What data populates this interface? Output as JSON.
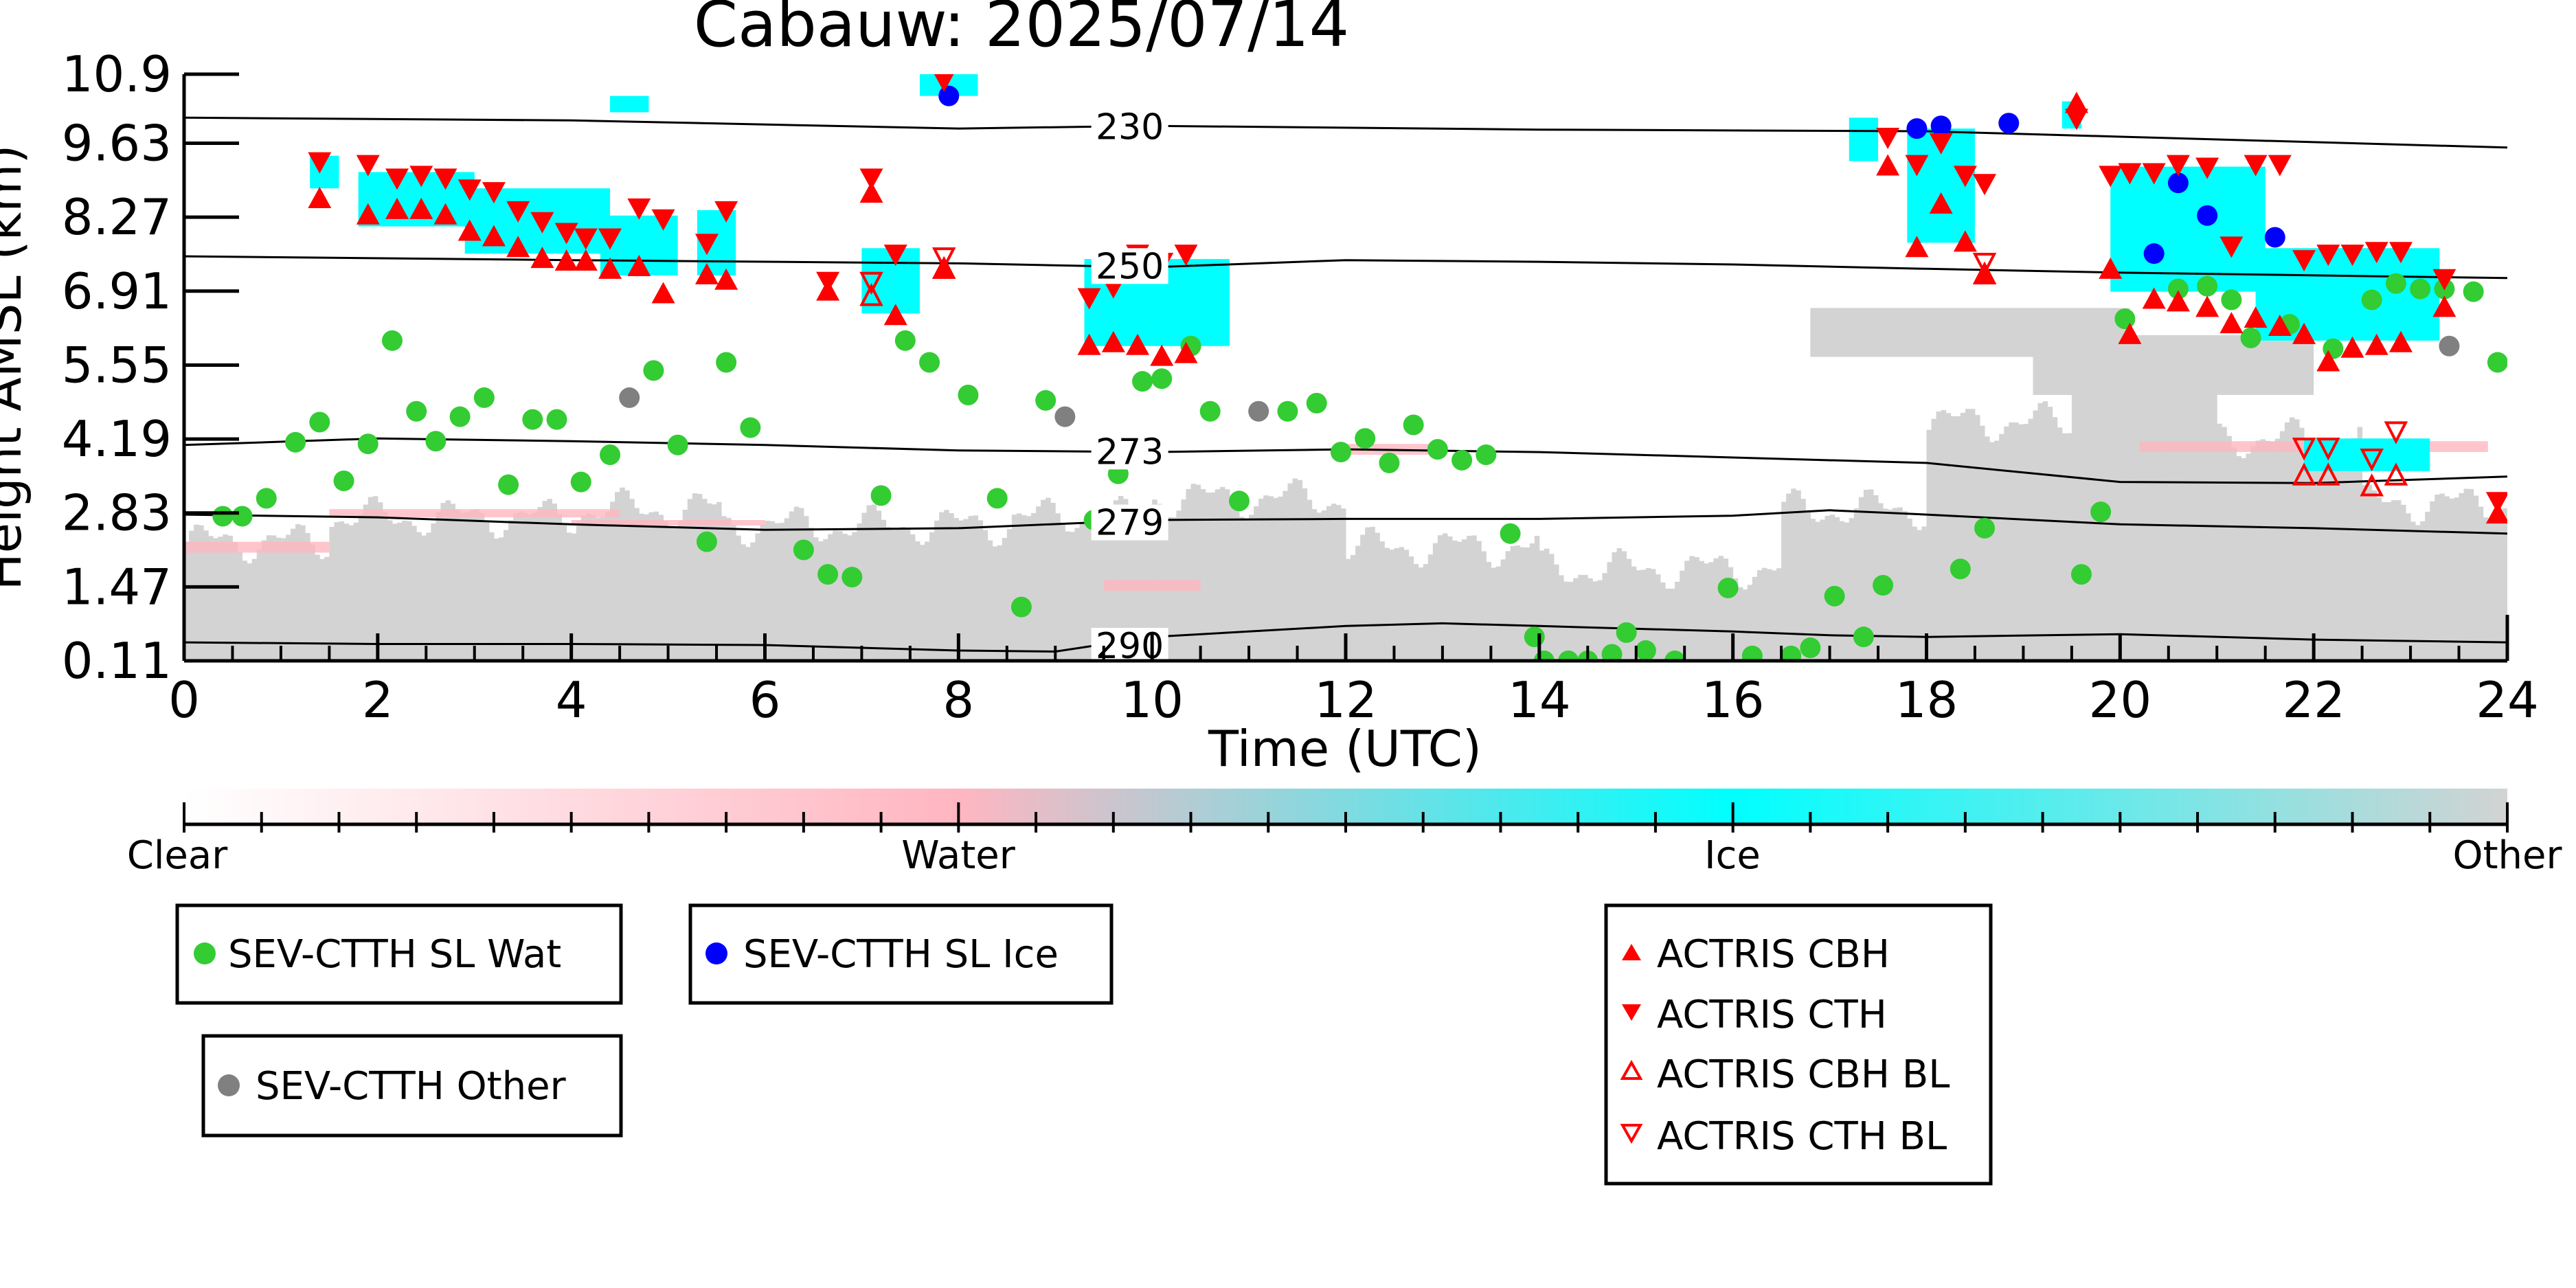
{
  "chart_data": {
    "type": "scatter",
    "title": "Cabauw: 2025/07/14",
    "xlabel": "Time (UTC)",
    "ylabel": "Height AMSL (km)",
    "xlim": [
      0,
      24
    ],
    "ylim": [
      0.11,
      10.9
    ],
    "x_ticks": [
      "0",
      "2",
      "4",
      "6",
      "8",
      "10",
      "12",
      "14",
      "16",
      "18",
      "20",
      "22",
      "24"
    ],
    "y_ticks": [
      "0.11",
      "1.47",
      "2.83",
      "4.19",
      "5.55",
      "6.91",
      "8.27",
      "9.63",
      "10.9"
    ],
    "colorbar": {
      "labels": [
        "Clear",
        "Water",
        "Ice",
        "Other"
      ],
      "colors": [
        "#ffffff",
        "#ffb6c1",
        "#00ffff",
        "#d3d3d3"
      ]
    },
    "isotherms": [
      {
        "label": "230",
        "label_x": 9.4,
        "points": [
          [
            0,
            10.1
          ],
          [
            4,
            10.05
          ],
          [
            8,
            9.9
          ],
          [
            10,
            9.95
          ],
          [
            14,
            9.88
          ],
          [
            18,
            9.85
          ],
          [
            20,
            9.75
          ],
          [
            24,
            9.55
          ]
        ]
      },
      {
        "label": "250",
        "label_x": 9.4,
        "points": [
          [
            0,
            7.55
          ],
          [
            4,
            7.48
          ],
          [
            8,
            7.42
          ],
          [
            10,
            7.35
          ],
          [
            12,
            7.48
          ],
          [
            14,
            7.45
          ],
          [
            16,
            7.4
          ],
          [
            18,
            7.32
          ],
          [
            20,
            7.25
          ],
          [
            24,
            7.15
          ]
        ]
      },
      {
        "label": "273",
        "label_x": 9.4,
        "points": [
          [
            0,
            4.08
          ],
          [
            2,
            4.2
          ],
          [
            4,
            4.15
          ],
          [
            6,
            4.08
          ],
          [
            8,
            3.98
          ],
          [
            10,
            3.95
          ],
          [
            12,
            4.0
          ],
          [
            14,
            3.95
          ],
          [
            16,
            3.85
          ],
          [
            18,
            3.75
          ],
          [
            20,
            3.4
          ],
          [
            22,
            3.38
          ],
          [
            24,
            3.5
          ]
        ]
      },
      {
        "label": "279",
        "label_x": 9.4,
        "points": [
          [
            0,
            2.8
          ],
          [
            2,
            2.75
          ],
          [
            4,
            2.62
          ],
          [
            6,
            2.52
          ],
          [
            8,
            2.55
          ],
          [
            10,
            2.7
          ],
          [
            12,
            2.72
          ],
          [
            14,
            2.72
          ],
          [
            16,
            2.78
          ],
          [
            17,
            2.88
          ],
          [
            18,
            2.8
          ],
          [
            20,
            2.62
          ],
          [
            22,
            2.55
          ],
          [
            24,
            2.45
          ]
        ]
      },
      {
        "label": "290",
        "label_x": 9.4,
        "points": [
          [
            0,
            0.45
          ],
          [
            2,
            0.42
          ],
          [
            4,
            0.42
          ],
          [
            6,
            0.4
          ],
          [
            8,
            0.3
          ],
          [
            9,
            0.28
          ],
          [
            10,
            0.55
          ],
          [
            12,
            0.75
          ],
          [
            13,
            0.8
          ],
          [
            14,
            0.75
          ],
          [
            16,
            0.65
          ],
          [
            17,
            0.58
          ],
          [
            18,
            0.55
          ],
          [
            20,
            0.6
          ],
          [
            22,
            0.5
          ],
          [
            24,
            0.45
          ]
        ]
      }
    ],
    "series": [
      {
        "name": "SEV-CTTH SL Wat",
        "color": "#33cc33",
        "marker": "circle",
        "points": [
          [
            0.4,
            2.77
          ],
          [
            0.6,
            2.77
          ],
          [
            0.85,
            3.1
          ],
          [
            1.15,
            4.13
          ],
          [
            1.4,
            4.5
          ],
          [
            1.65,
            3.42
          ],
          [
            1.9,
            4.1
          ],
          [
            2.15,
            6.0
          ],
          [
            2.4,
            4.7
          ],
          [
            2.6,
            4.15
          ],
          [
            2.85,
            4.6
          ],
          [
            3.1,
            4.95
          ],
          [
            3.35,
            3.35
          ],
          [
            3.6,
            4.55
          ],
          [
            3.85,
            4.55
          ],
          [
            4.1,
            3.4
          ],
          [
            4.4,
            3.9
          ],
          [
            4.85,
            5.45
          ],
          [
            5.1,
            4.08
          ],
          [
            5.4,
            2.3
          ],
          [
            5.6,
            5.6
          ],
          [
            5.85,
            4.4
          ],
          [
            6.4,
            2.15
          ],
          [
            6.65,
            1.7
          ],
          [
            6.9,
            1.65
          ],
          [
            7.2,
            3.15
          ],
          [
            7.45,
            6.0
          ],
          [
            7.7,
            5.6
          ],
          [
            8.1,
            5.0
          ],
          [
            8.4,
            3.1
          ],
          [
            8.65,
            1.1
          ],
          [
            8.9,
            4.9
          ],
          [
            9.4,
            2.7
          ],
          [
            9.65,
            3.55
          ],
          [
            9.9,
            5.25
          ],
          [
            10.1,
            5.3
          ],
          [
            10.4,
            5.9
          ],
          [
            10.6,
            4.7
          ],
          [
            10.9,
            3.05
          ],
          [
            11.4,
            4.7
          ],
          [
            11.7,
            4.85
          ],
          [
            11.95,
            3.95
          ],
          [
            12.2,
            4.2
          ],
          [
            12.45,
            3.75
          ],
          [
            12.7,
            4.45
          ],
          [
            12.95,
            4.0
          ],
          [
            13.2,
            3.8
          ],
          [
            13.45,
            3.9
          ],
          [
            13.7,
            2.45
          ],
          [
            13.95,
            0.55
          ],
          [
            14.05,
            0.11
          ],
          [
            14.3,
            0.11
          ],
          [
            14.5,
            0.11
          ],
          [
            14.75,
            0.23
          ],
          [
            14.9,
            0.63
          ],
          [
            15.1,
            0.3
          ],
          [
            15.4,
            0.11
          ],
          [
            15.95,
            1.45
          ],
          [
            16.2,
            0.2
          ],
          [
            16.6,
            0.2
          ],
          [
            16.8,
            0.35
          ],
          [
            17.05,
            1.3
          ],
          [
            17.35,
            0.55
          ],
          [
            17.55,
            1.5
          ],
          [
            18.35,
            1.8
          ],
          [
            18.6,
            2.55
          ],
          [
            19.6,
            1.7
          ],
          [
            19.8,
            2.85
          ],
          [
            20.05,
            6.4
          ],
          [
            20.6,
            6.95
          ],
          [
            20.9,
            7.0
          ],
          [
            21.15,
            6.75
          ],
          [
            21.35,
            6.05
          ],
          [
            21.75,
            6.3
          ],
          [
            22.2,
            5.85
          ],
          [
            22.6,
            6.75
          ],
          [
            22.85,
            7.05
          ],
          [
            23.1,
            6.95
          ],
          [
            23.35,
            6.95
          ],
          [
            23.65,
            6.9
          ],
          [
            23.9,
            5.6
          ]
        ]
      },
      {
        "name": "SEV-CTTH SL Ice",
        "color": "#0000ff",
        "marker": "circle",
        "points": [
          [
            7.9,
            10.5
          ],
          [
            17.9,
            9.9
          ],
          [
            18.15,
            9.95
          ],
          [
            18.85,
            10.0
          ],
          [
            20.35,
            7.6
          ],
          [
            20.6,
            8.9
          ],
          [
            20.9,
            8.3
          ],
          [
            21.6,
            7.9
          ]
        ]
      },
      {
        "name": "SEV-CTTH Other",
        "color": "#808080",
        "marker": "circle",
        "points": [
          [
            4.6,
            4.95
          ],
          [
            9.1,
            4.6
          ],
          [
            11.1,
            4.7
          ],
          [
            23.4,
            5.9
          ]
        ]
      },
      {
        "name": "ACTRIS CBH",
        "color": "#ff0000",
        "marker": "triangle-up",
        "points": [
          [
            1.4,
            8.6
          ],
          [
            1.9,
            8.3
          ],
          [
            2.2,
            8.4
          ],
          [
            2.45,
            8.4
          ],
          [
            2.7,
            8.3
          ],
          [
            2.95,
            8.0
          ],
          [
            3.2,
            7.9
          ],
          [
            3.45,
            7.7
          ],
          [
            3.7,
            7.5
          ],
          [
            3.95,
            7.45
          ],
          [
            4.15,
            7.45
          ],
          [
            4.4,
            7.3
          ],
          [
            4.7,
            7.35
          ],
          [
            4.95,
            6.85
          ],
          [
            5.4,
            7.2
          ],
          [
            5.6,
            7.1
          ],
          [
            6.65,
            6.9
          ],
          [
            7.1,
            8.7
          ],
          [
            7.35,
            6.45
          ],
          [
            7.85,
            7.3
          ],
          [
            9.35,
            5.9
          ],
          [
            9.6,
            5.95
          ],
          [
            9.85,
            5.9
          ],
          [
            10.1,
            5.7
          ],
          [
            10.35,
            5.75
          ],
          [
            17.6,
            9.2
          ],
          [
            17.9,
            7.7
          ],
          [
            18.15,
            8.5
          ],
          [
            18.4,
            7.8
          ],
          [
            18.6,
            7.2
          ],
          [
            19.55,
            10.35
          ],
          [
            19.9,
            7.3
          ],
          [
            20.1,
            6.1
          ],
          [
            20.35,
            6.75
          ],
          [
            20.6,
            6.7
          ],
          [
            20.9,
            6.6
          ],
          [
            21.15,
            6.3
          ],
          [
            21.4,
            6.4
          ],
          [
            21.65,
            6.25
          ],
          [
            21.9,
            6.1
          ],
          [
            22.15,
            5.6
          ],
          [
            22.4,
            5.85
          ],
          [
            22.65,
            5.9
          ],
          [
            22.9,
            5.95
          ],
          [
            23.35,
            6.6
          ],
          [
            23.9,
            2.8
          ]
        ]
      },
      {
        "name": "ACTRIS CTH",
        "color": "#ff0000",
        "marker": "triangle-down",
        "points": [
          [
            1.4,
            9.3
          ],
          [
            1.9,
            9.25
          ],
          [
            2.2,
            9.0
          ],
          [
            2.45,
            9.05
          ],
          [
            2.7,
            9.0
          ],
          [
            2.95,
            8.8
          ],
          [
            3.2,
            8.75
          ],
          [
            3.45,
            8.4
          ],
          [
            3.7,
            8.2
          ],
          [
            3.95,
            8.0
          ],
          [
            4.15,
            7.9
          ],
          [
            4.4,
            7.9
          ],
          [
            4.7,
            8.45
          ],
          [
            4.95,
            8.25
          ],
          [
            5.4,
            7.8
          ],
          [
            5.6,
            8.4
          ],
          [
            6.65,
            7.1
          ],
          [
            7.1,
            9.0
          ],
          [
            7.35,
            7.6
          ],
          [
            7.85,
            10.8
          ],
          [
            9.35,
            6.8
          ],
          [
            9.6,
            7.0
          ],
          [
            9.85,
            7.6
          ],
          [
            10.1,
            7.45
          ],
          [
            10.35,
            7.6
          ],
          [
            17.6,
            9.75
          ],
          [
            17.9,
            9.25
          ],
          [
            18.15,
            9.65
          ],
          [
            18.4,
            9.05
          ],
          [
            18.6,
            8.9
          ],
          [
            19.55,
            10.1
          ],
          [
            19.9,
            9.05
          ],
          [
            20.1,
            9.1
          ],
          [
            20.35,
            9.1
          ],
          [
            20.6,
            9.25
          ],
          [
            20.9,
            9.2
          ],
          [
            21.15,
            7.75
          ],
          [
            21.4,
            9.25
          ],
          [
            21.65,
            9.25
          ],
          [
            21.9,
            7.5
          ],
          [
            22.15,
            7.6
          ],
          [
            22.4,
            7.6
          ],
          [
            22.65,
            7.65
          ],
          [
            22.9,
            7.65
          ],
          [
            23.35,
            7.15
          ],
          [
            23.9,
            3.05
          ]
        ]
      },
      {
        "name": "ACTRIS CBH BL",
        "color": "#ff0000",
        "marker": "triangle-up-open",
        "points": [
          [
            7.1,
            6.8
          ],
          [
            7.85,
            7.3
          ],
          [
            18.6,
            7.2
          ],
          [
            21.9,
            3.5
          ],
          [
            22.15,
            3.5
          ],
          [
            22.6,
            3.3
          ],
          [
            22.85,
            3.5
          ]
        ]
      },
      {
        "name": "ACTRIS CTH BL",
        "color": "#ff0000",
        "marker": "triangle-down-open",
        "points": [
          [
            7.1,
            7.1
          ],
          [
            7.85,
            7.55
          ],
          [
            18.6,
            7.45
          ],
          [
            21.9,
            4.05
          ],
          [
            22.15,
            4.05
          ],
          [
            22.6,
            3.85
          ],
          [
            22.85,
            4.35
          ]
        ]
      }
    ]
  }
}
